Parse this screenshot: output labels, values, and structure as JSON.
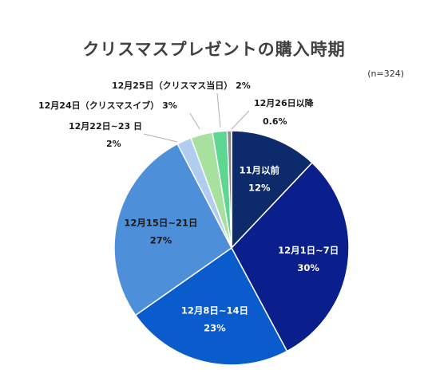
{
  "chart_data": {
    "type": "pie",
    "title": "クリスマスプレゼントの購入時期",
    "note": "(n=324)",
    "slices": [
      {
        "name": "11月以前",
        "value": 12,
        "value_label": "12%",
        "color": "#0d2a6b"
      },
      {
        "name": "12月1日~7日",
        "value": 30,
        "value_label": "30%",
        "color": "#0a1f8c"
      },
      {
        "name": "12月8日~14日",
        "value": 23,
        "value_label": "23%",
        "color": "#0a5ccc"
      },
      {
        "name": "12月15日~21日",
        "value": 27,
        "value_label": "27%",
        "color": "#4d8fd9"
      },
      {
        "name": "12月22日~23 日",
        "value": 2,
        "value_label": "2%",
        "color": "#b0cdf0"
      },
      {
        "name": "12月24日（クリスマスイブ）",
        "value": 3,
        "value_label": "3%",
        "color": "#a8e0a0"
      },
      {
        "name": "12月25日（クリスマス当日）",
        "value": 2,
        "value_label": "2%",
        "color": "#5cd690"
      },
      {
        "name": "12月26日以降",
        "value": 0.6,
        "value_label": "0.6%",
        "color": "#8c8c8c"
      }
    ]
  }
}
